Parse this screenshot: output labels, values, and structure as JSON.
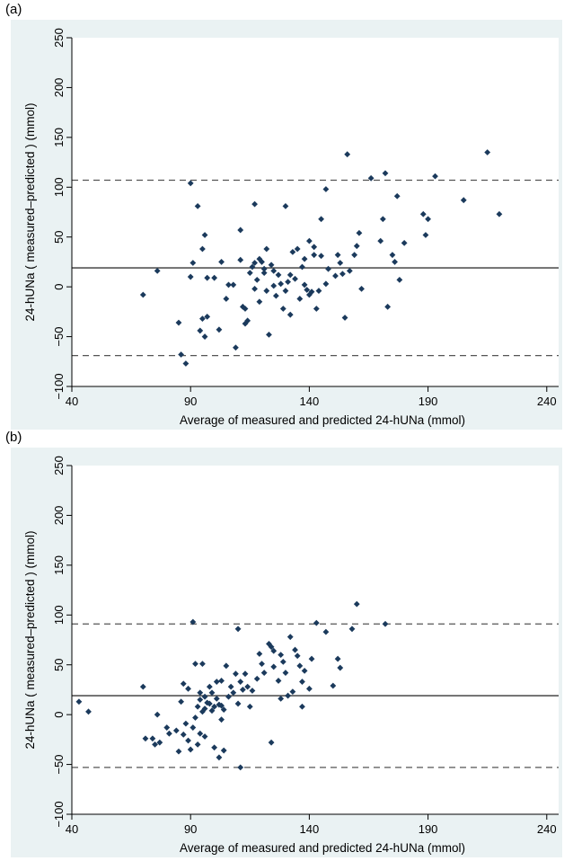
{
  "chart_data": [
    {
      "panel_label": "(a)",
      "type": "scatter",
      "xlabel": "Average of measured and predicted 24-hUNa (mmol)",
      "ylabel": "24-hUNa ( measured–predicted ) (mmol)",
      "xlim": [
        40,
        245
      ],
      "ylim": [
        -100,
        250
      ],
      "xticks": [
        40,
        90,
        140,
        190,
        240
      ],
      "yticks": [
        -100,
        -50,
        0,
        50,
        100,
        150,
        200,
        250
      ],
      "grid": false,
      "reference_lines": {
        "mean": 19,
        "upper_loa": 107,
        "lower_loa": -69
      },
      "colors": {
        "background": "#eaf2f3",
        "points": "#1b3a5c",
        "lines": "#555555"
      },
      "points": [
        [
          70,
          -8
        ],
        [
          76,
          16
        ],
        [
          85,
          -36
        ],
        [
          86,
          -68
        ],
        [
          88,
          -77
        ],
        [
          90,
          10
        ],
        [
          90,
          104
        ],
        [
          91,
          24
        ],
        [
          93,
          81
        ],
        [
          94,
          -44
        ],
        [
          95,
          38
        ],
        [
          95,
          -32
        ],
        [
          96,
          52
        ],
        [
          96,
          -50
        ],
        [
          97,
          9
        ],
        [
          97,
          -30
        ],
        [
          100,
          9
        ],
        [
          102,
          -43
        ],
        [
          103,
          25
        ],
        [
          105,
          -12
        ],
        [
          106,
          2
        ],
        [
          108,
          2
        ],
        [
          109,
          -61
        ],
        [
          111,
          27
        ],
        [
          111,
          57
        ],
        [
          112,
          -20
        ],
        [
          113,
          -37
        ],
        [
          113,
          -22
        ],
        [
          114,
          -34
        ],
        [
          115,
          14
        ],
        [
          116,
          20
        ],
        [
          117,
          24
        ],
        [
          117,
          83
        ],
        [
          117,
          -2
        ],
        [
          118,
          7
        ],
        [
          119,
          28
        ],
        [
          119,
          -15
        ],
        [
          120,
          25
        ],
        [
          121,
          18
        ],
        [
          121,
          14
        ],
        [
          122,
          38
        ],
        [
          122,
          -4
        ],
        [
          123,
          -48
        ],
        [
          124,
          22
        ],
        [
          125,
          1
        ],
        [
          125,
          16
        ],
        [
          126,
          -9
        ],
        [
          127,
          12
        ],
        [
          128,
          3
        ],
        [
          129,
          -22
        ],
        [
          130,
          81
        ],
        [
          130,
          -4
        ],
        [
          131,
          5
        ],
        [
          132,
          12
        ],
        [
          132,
          -28
        ],
        [
          133,
          35
        ],
        [
          134,
          8
        ],
        [
          135,
          38
        ],
        [
          136,
          -12
        ],
        [
          137,
          20
        ],
        [
          138,
          2
        ],
        [
          138,
          28
        ],
        [
          139,
          -3
        ],
        [
          140,
          46
        ],
        [
          140,
          -8
        ],
        [
          141,
          -5
        ],
        [
          142,
          40
        ],
        [
          142,
          32
        ],
        [
          143,
          -22
        ],
        [
          144,
          -4
        ],
        [
          145,
          31
        ],
        [
          145,
          68
        ],
        [
          147,
          3
        ],
        [
          147,
          98
        ],
        [
          148,
          18
        ],
        [
          151,
          11
        ],
        [
          152,
          32
        ],
        [
          153,
          24
        ],
        [
          154,
          13
        ],
        [
          155,
          -31
        ],
        [
          156,
          133
        ],
        [
          157,
          16
        ],
        [
          159,
          32
        ],
        [
          160,
          41
        ],
        [
          161,
          54
        ],
        [
          162,
          -2
        ],
        [
          166,
          109
        ],
        [
          170,
          46
        ],
        [
          171,
          68
        ],
        [
          172,
          114
        ],
        [
          173,
          -20
        ],
        [
          175,
          32
        ],
        [
          176,
          25
        ],
        [
          177,
          91
        ],
        [
          178,
          7
        ],
        [
          180,
          44
        ],
        [
          188,
          73
        ],
        [
          189,
          52
        ],
        [
          190,
          68
        ],
        [
          193,
          111
        ],
        [
          205,
          87
        ],
        [
          215,
          135
        ],
        [
          220,
          73
        ]
      ]
    },
    {
      "panel_label": "(b)",
      "type": "scatter",
      "xlabel": "Average of measured and predicted 24-hUNa (mmol)",
      "ylabel": "24-hUNa ( measured–predicted ) (mmol)",
      "xlim": [
        40,
        245
      ],
      "ylim": [
        -100,
        250
      ],
      "xticks": [
        40,
        90,
        140,
        190,
        240
      ],
      "yticks": [
        -100,
        -50,
        0,
        50,
        100,
        150,
        200,
        250
      ],
      "grid": false,
      "reference_lines": {
        "mean": 19,
        "upper_loa": 91,
        "lower_loa": -53
      },
      "colors": {
        "background": "#eaf2f3",
        "points": "#1b3a5c",
        "lines": "#555555"
      },
      "points": [
        [
          43,
          13
        ],
        [
          47,
          3
        ],
        [
          70,
          28
        ],
        [
          71,
          -24
        ],
        [
          74,
          -24
        ],
        [
          75,
          -30
        ],
        [
          76,
          0
        ],
        [
          77,
          -28
        ],
        [
          80,
          -13
        ],
        [
          81,
          -19
        ],
        [
          84,
          -16
        ],
        [
          85,
          -37
        ],
        [
          86,
          13
        ],
        [
          87,
          -20
        ],
        [
          87,
          31
        ],
        [
          88,
          -9
        ],
        [
          89,
          26
        ],
        [
          89,
          -26
        ],
        [
          90,
          -35
        ],
        [
          91,
          93
        ],
        [
          91,
          -13
        ],
        [
          92,
          51
        ],
        [
          92,
          -3
        ],
        [
          93,
          8
        ],
        [
          93,
          -30
        ],
        [
          94,
          15
        ],
        [
          94,
          22
        ],
        [
          94,
          -19
        ],
        [
          95,
          51
        ],
        [
          95,
          3
        ],
        [
          96,
          -22
        ],
        [
          96,
          6
        ],
        [
          96,
          18
        ],
        [
          97,
          12
        ],
        [
          98,
          28
        ],
        [
          98,
          11
        ],
        [
          99,
          4
        ],
        [
          99,
          22
        ],
        [
          100,
          8
        ],
        [
          100,
          -33
        ],
        [
          101,
          16
        ],
        [
          101,
          33
        ],
        [
          102,
          10
        ],
        [
          102,
          -43
        ],
        [
          103,
          -5
        ],
        [
          103,
          9
        ],
        [
          103,
          34
        ],
        [
          104,
          -36
        ],
        [
          104,
          5
        ],
        [
          105,
          49
        ],
        [
          106,
          18
        ],
        [
          107,
          28
        ],
        [
          108,
          22
        ],
        [
          109,
          41
        ],
        [
          110,
          86
        ],
        [
          110,
          11
        ],
        [
          111,
          -53
        ],
        [
          111,
          33
        ],
        [
          112,
          25
        ],
        [
          113,
          41
        ],
        [
          114,
          28
        ],
        [
          115,
          8
        ],
        [
          116,
          24
        ],
        [
          118,
          36
        ],
        [
          119,
          61
        ],
        [
          120,
          51
        ],
        [
          121,
          42
        ],
        [
          123,
          71
        ],
        [
          124,
          68
        ],
        [
          124,
          -28
        ],
        [
          125,
          48
        ],
        [
          125,
          64
        ],
        [
          127,
          34
        ],
        [
          128,
          16
        ],
        [
          128,
          60
        ],
        [
          129,
          53
        ],
        [
          130,
          42
        ],
        [
          131,
          19
        ],
        [
          132,
          78
        ],
        [
          133,
          23
        ],
        [
          134,
          65
        ],
        [
          135,
          59
        ],
        [
          136,
          49
        ],
        [
          137,
          8
        ],
        [
          137,
          33
        ],
        [
          138,
          44
        ],
        [
          140,
          26
        ],
        [
          141,
          56
        ],
        [
          143,
          92
        ],
        [
          147,
          83
        ],
        [
          150,
          29
        ],
        [
          152,
          56
        ],
        [
          153,
          47
        ],
        [
          158,
          86
        ],
        [
          160,
          111
        ],
        [
          172,
          91
        ]
      ]
    }
  ]
}
